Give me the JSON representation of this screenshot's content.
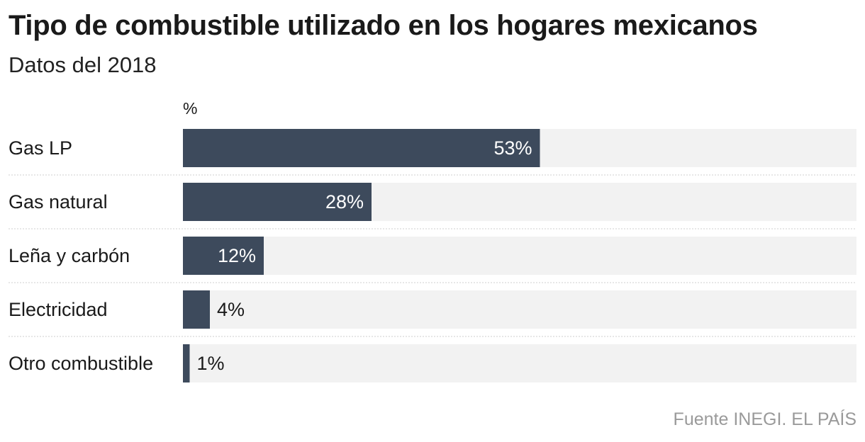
{
  "header": {
    "title": "Tipo de combustible utilizado en los hogares mexicanos",
    "subtitle": "Datos del 2018"
  },
  "footer": {
    "source": "Fuente INEGI. EL PAÍS"
  },
  "colors": {
    "bar": "#3d4a5c",
    "track": "#f2f2f2",
    "divider": "#cfcfcf",
    "label_inside": "#ffffff",
    "label_outside": "#1a1a1a"
  },
  "chart_data": {
    "type": "bar",
    "orientation": "horizontal",
    "unit_label": "%",
    "categories": [
      "Gas LP",
      "Gas natural",
      "Leña y carbón",
      "Electricidad",
      "Otro combustible"
    ],
    "values": [
      53,
      28,
      12,
      4,
      1
    ],
    "value_labels": [
      "53%",
      "28%",
      "12%",
      "4%",
      "1%"
    ],
    "xlim": [
      0,
      100
    ],
    "grid": false,
    "legend": "none"
  }
}
